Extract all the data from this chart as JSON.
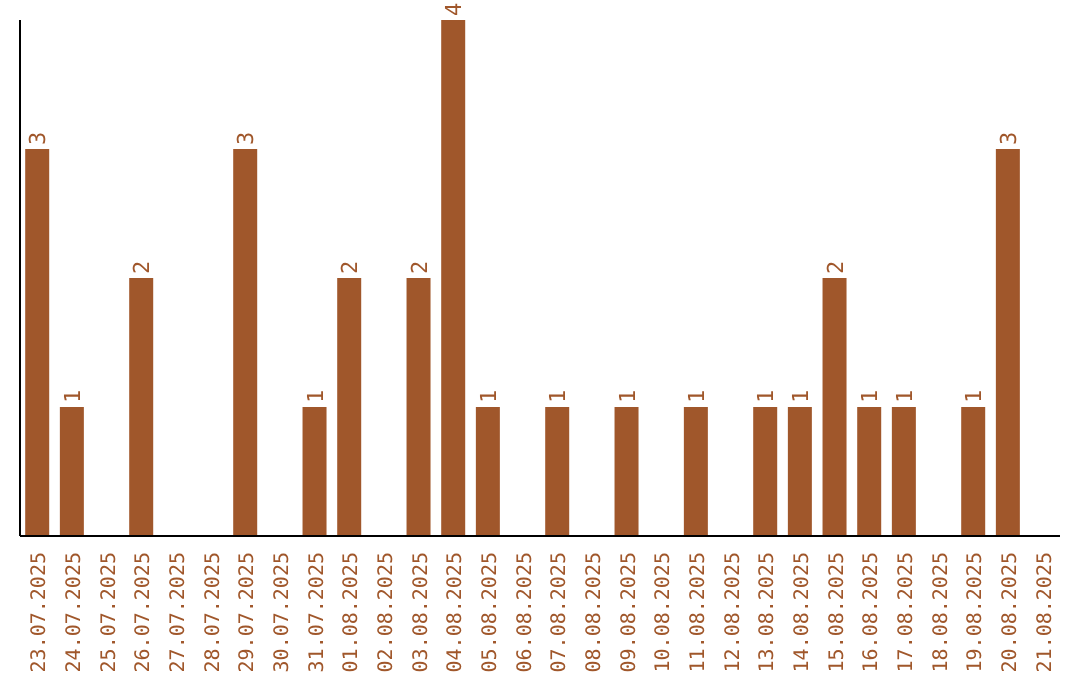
{
  "chart_data": {
    "type": "bar",
    "categories": [
      "23.07.2025",
      "24.07.2025",
      "25.07.2025",
      "26.07.2025",
      "27.07.2025",
      "28.07.2025",
      "29.07.2025",
      "30.07.2025",
      "31.07.2025",
      "01.08.2025",
      "02.08.2025",
      "03.08.2025",
      "04.08.2025",
      "05.08.2025",
      "06.08.2025",
      "07.08.2025",
      "08.08.2025",
      "09.08.2025",
      "10.08.2025",
      "11.08.2025",
      "12.08.2025",
      "13.08.2025",
      "14.08.2025",
      "15.08.2025",
      "16.08.2025",
      "17.08.2025",
      "18.08.2025",
      "19.08.2025",
      "20.08.2025",
      "21.08.2025"
    ],
    "values": [
      3,
      1,
      0,
      2,
      0,
      0,
      3,
      0,
      1,
      2,
      0,
      2,
      4,
      1,
      0,
      1,
      0,
      1,
      0,
      1,
      0,
      1,
      1,
      2,
      1,
      1,
      0,
      1,
      3,
      0
    ],
    "value_labels": [
      "3",
      "1",
      null,
      "2",
      null,
      null,
      "3",
      null,
      "1",
      "2",
      null,
      "2",
      "4",
      "1",
      null,
      "1",
      null,
      "1",
      null,
      "1",
      null,
      "1",
      "1",
      "2",
      "1",
      "1",
      null,
      "1",
      "3",
      null
    ],
    "color": "#a0572b",
    "tick_labels": "x"
  }
}
